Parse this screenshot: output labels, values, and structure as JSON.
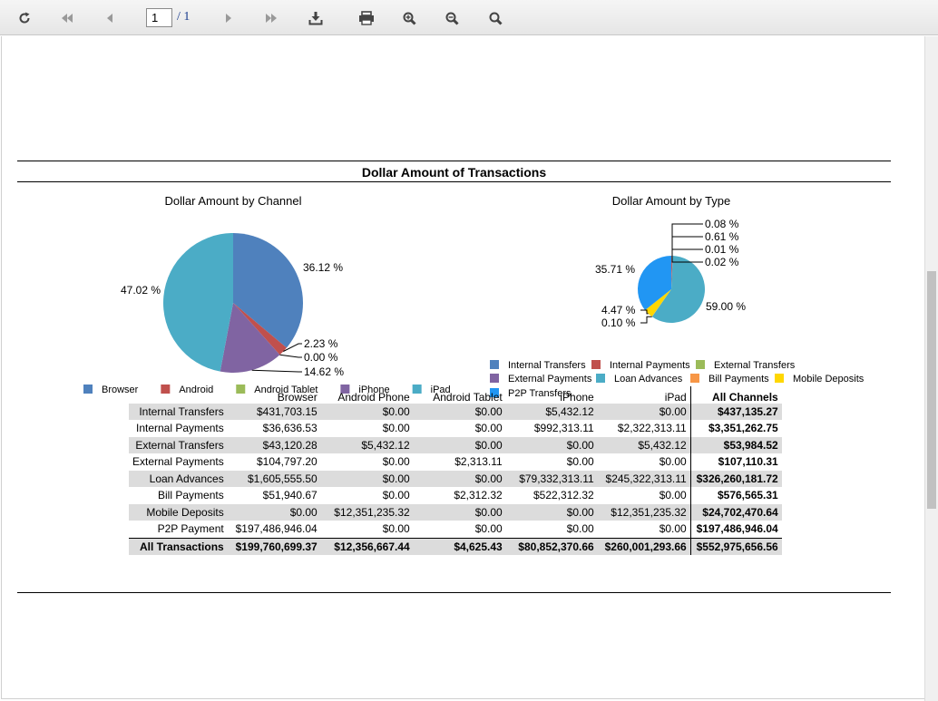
{
  "toolbar": {
    "page_current": "1",
    "page_total": "/ 1",
    "buttons": [
      {
        "name": "refresh-button",
        "icon": "refresh-icon"
      },
      {
        "name": "first-page-button",
        "icon": "double-left-arrow-icon"
      },
      {
        "name": "previous-page-button",
        "icon": "left-arrow-icon"
      },
      {
        "name": "next-page-button",
        "icon": "right-arrow-icon"
      },
      {
        "name": "last-page-button",
        "icon": "double-right-arrow-icon"
      },
      {
        "name": "export-button",
        "icon": "download-icon"
      },
      {
        "name": "print-button",
        "icon": "printer-icon"
      },
      {
        "name": "zoom-in-button",
        "icon": "zoom-in-icon"
      },
      {
        "name": "zoom-out-button",
        "icon": "zoom-out-icon"
      },
      {
        "name": "zoom-button",
        "icon": "magnifier-icon"
      }
    ]
  },
  "report": {
    "title": "Dollar Amount of Transactions"
  },
  "chart_data": [
    {
      "type": "pie",
      "title": "Dollar Amount by Channel",
      "slices": [
        {
          "name": "Browser",
          "value": 36.12,
          "label": "36.12 %",
          "color": "#4f81bd"
        },
        {
          "name": "Android",
          "value": 2.23,
          "label": "2.23 %",
          "color": "#c0504d"
        },
        {
          "name": "Android Tablet",
          "value": 0.0,
          "label": "0.00 %",
          "color": "#9bbb59"
        },
        {
          "name": "iPhone",
          "value": 14.62,
          "label": "14.62 %",
          "color": "#8064a2"
        },
        {
          "name": "iPad",
          "value": 47.02,
          "label": "47.02 %",
          "color": "#4bacc6"
        }
      ],
      "legend": [
        "Browser",
        "Android",
        "Android Tablet",
        "iPhone",
        "iPad"
      ],
      "legend_position": "bottom"
    },
    {
      "type": "pie",
      "title": "Dollar Amount by Type",
      "slices": [
        {
          "name": "Internal Transfers",
          "value": 0.08,
          "label": "0.08 %",
          "color": "#4f81bd"
        },
        {
          "name": "Internal Payments",
          "value": 0.61,
          "label": "0.61 %",
          "color": "#c0504d"
        },
        {
          "name": "External Transfers",
          "value": 0.01,
          "label": "0.01 %",
          "color": "#9bbb59"
        },
        {
          "name": "External Payments",
          "value": 0.02,
          "label": "0.02 %",
          "color": "#8064a2"
        },
        {
          "name": "Loan Advances",
          "value": 59.0,
          "label": "59.00 %",
          "color": "#4bacc6"
        },
        {
          "name": "Bill Payments",
          "value": 0.1,
          "label": "0.10 %",
          "color": "#f79646"
        },
        {
          "name": "Mobile Deposits",
          "value": 4.47,
          "label": "4.47 %",
          "color": "#ffd700"
        },
        {
          "name": "P2P Transfers",
          "value": 35.71,
          "label": "35.71 %",
          "color": "#2196f3"
        }
      ],
      "legend": [
        "Internal Transfers",
        "Internal Payments",
        "External Transfers",
        "External Payments",
        "Loan Advances",
        "Bill Payments",
        "Mobile Deposits",
        "P2P Transfers"
      ],
      "legend_position": "bottom"
    },
    {
      "type": "table",
      "columns": [
        "",
        "Browser",
        "Android Phone",
        "Android Tablet",
        "iPhone",
        "iPad",
        "All Channels"
      ],
      "rows": [
        [
          "Internal Transfers",
          "$431,703.15",
          "$0.00",
          "$0.00",
          "$5,432.12",
          "$0.00",
          "$437,135.27"
        ],
        [
          "Internal Payments",
          "$36,636.53",
          "$0.00",
          "$0.00",
          "$992,313.11",
          "$2,322,313.11",
          "$3,351,262.75"
        ],
        [
          "External Transfers",
          "$43,120.28",
          "$5,432.12",
          "$0.00",
          "$0.00",
          "$5,432.12",
          "$53,984.52"
        ],
        [
          "External Payments",
          "$104,797.20",
          "$0.00",
          "$2,313.11",
          "$0.00",
          "$0.00",
          "$107,110.31"
        ],
        [
          "Loan Advances",
          "$1,605,555.50",
          "$0.00",
          "$0.00",
          "$79,332,313.11",
          "$245,322,313.11",
          "$326,260,181.72"
        ],
        [
          "Bill Payments",
          "$51,940.67",
          "$0.00",
          "$2,312.32",
          "$522,312.32",
          "$0.00",
          "$576,565.31"
        ],
        [
          "Mobile Deposits",
          "$0.00",
          "$12,351,235.32",
          "$0.00",
          "$0.00",
          "$12,351,235.32",
          "$24,702,470.64"
        ],
        [
          "P2P Payment",
          "$197,486,946.04",
          "$0.00",
          "$0.00",
          "$0.00",
          "$0.00",
          "$197,486,946.04"
        ]
      ],
      "total_row": [
        "All Transactions",
        "$199,760,699.37",
        "$12,356,667.44",
        "$4,625.43",
        "$80,852,370.66",
        "$260,001,293.66",
        "$552,975,656.56"
      ]
    }
  ]
}
